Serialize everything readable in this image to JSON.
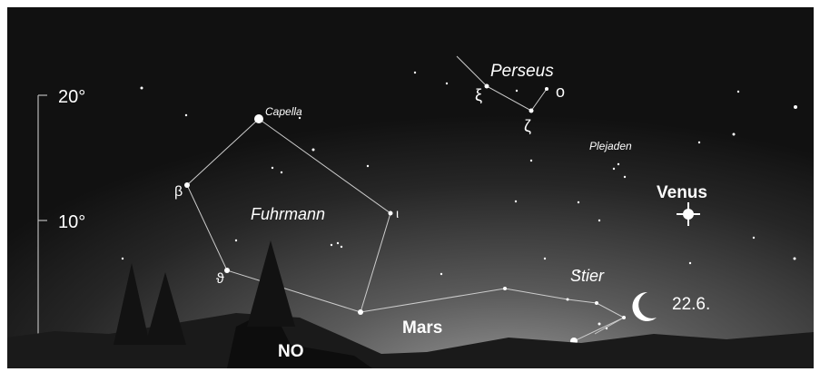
{
  "scale": {
    "labels": [
      "20°",
      "10°"
    ]
  },
  "stars": {
    "capella": "Capella",
    "perseus": "Perseus",
    "xi": "ξ",
    "omicron": "o",
    "zeta": "ζ",
    "plejaden": "Plejaden",
    "beta": "β",
    "fuhrmann": "Fuhrmann",
    "iota": "ι",
    "venus": "Venus",
    "theta": "ϑ",
    "stier": "Stier",
    "date": "22.6.",
    "mars": "Mars"
  },
  "direction": "NO"
}
